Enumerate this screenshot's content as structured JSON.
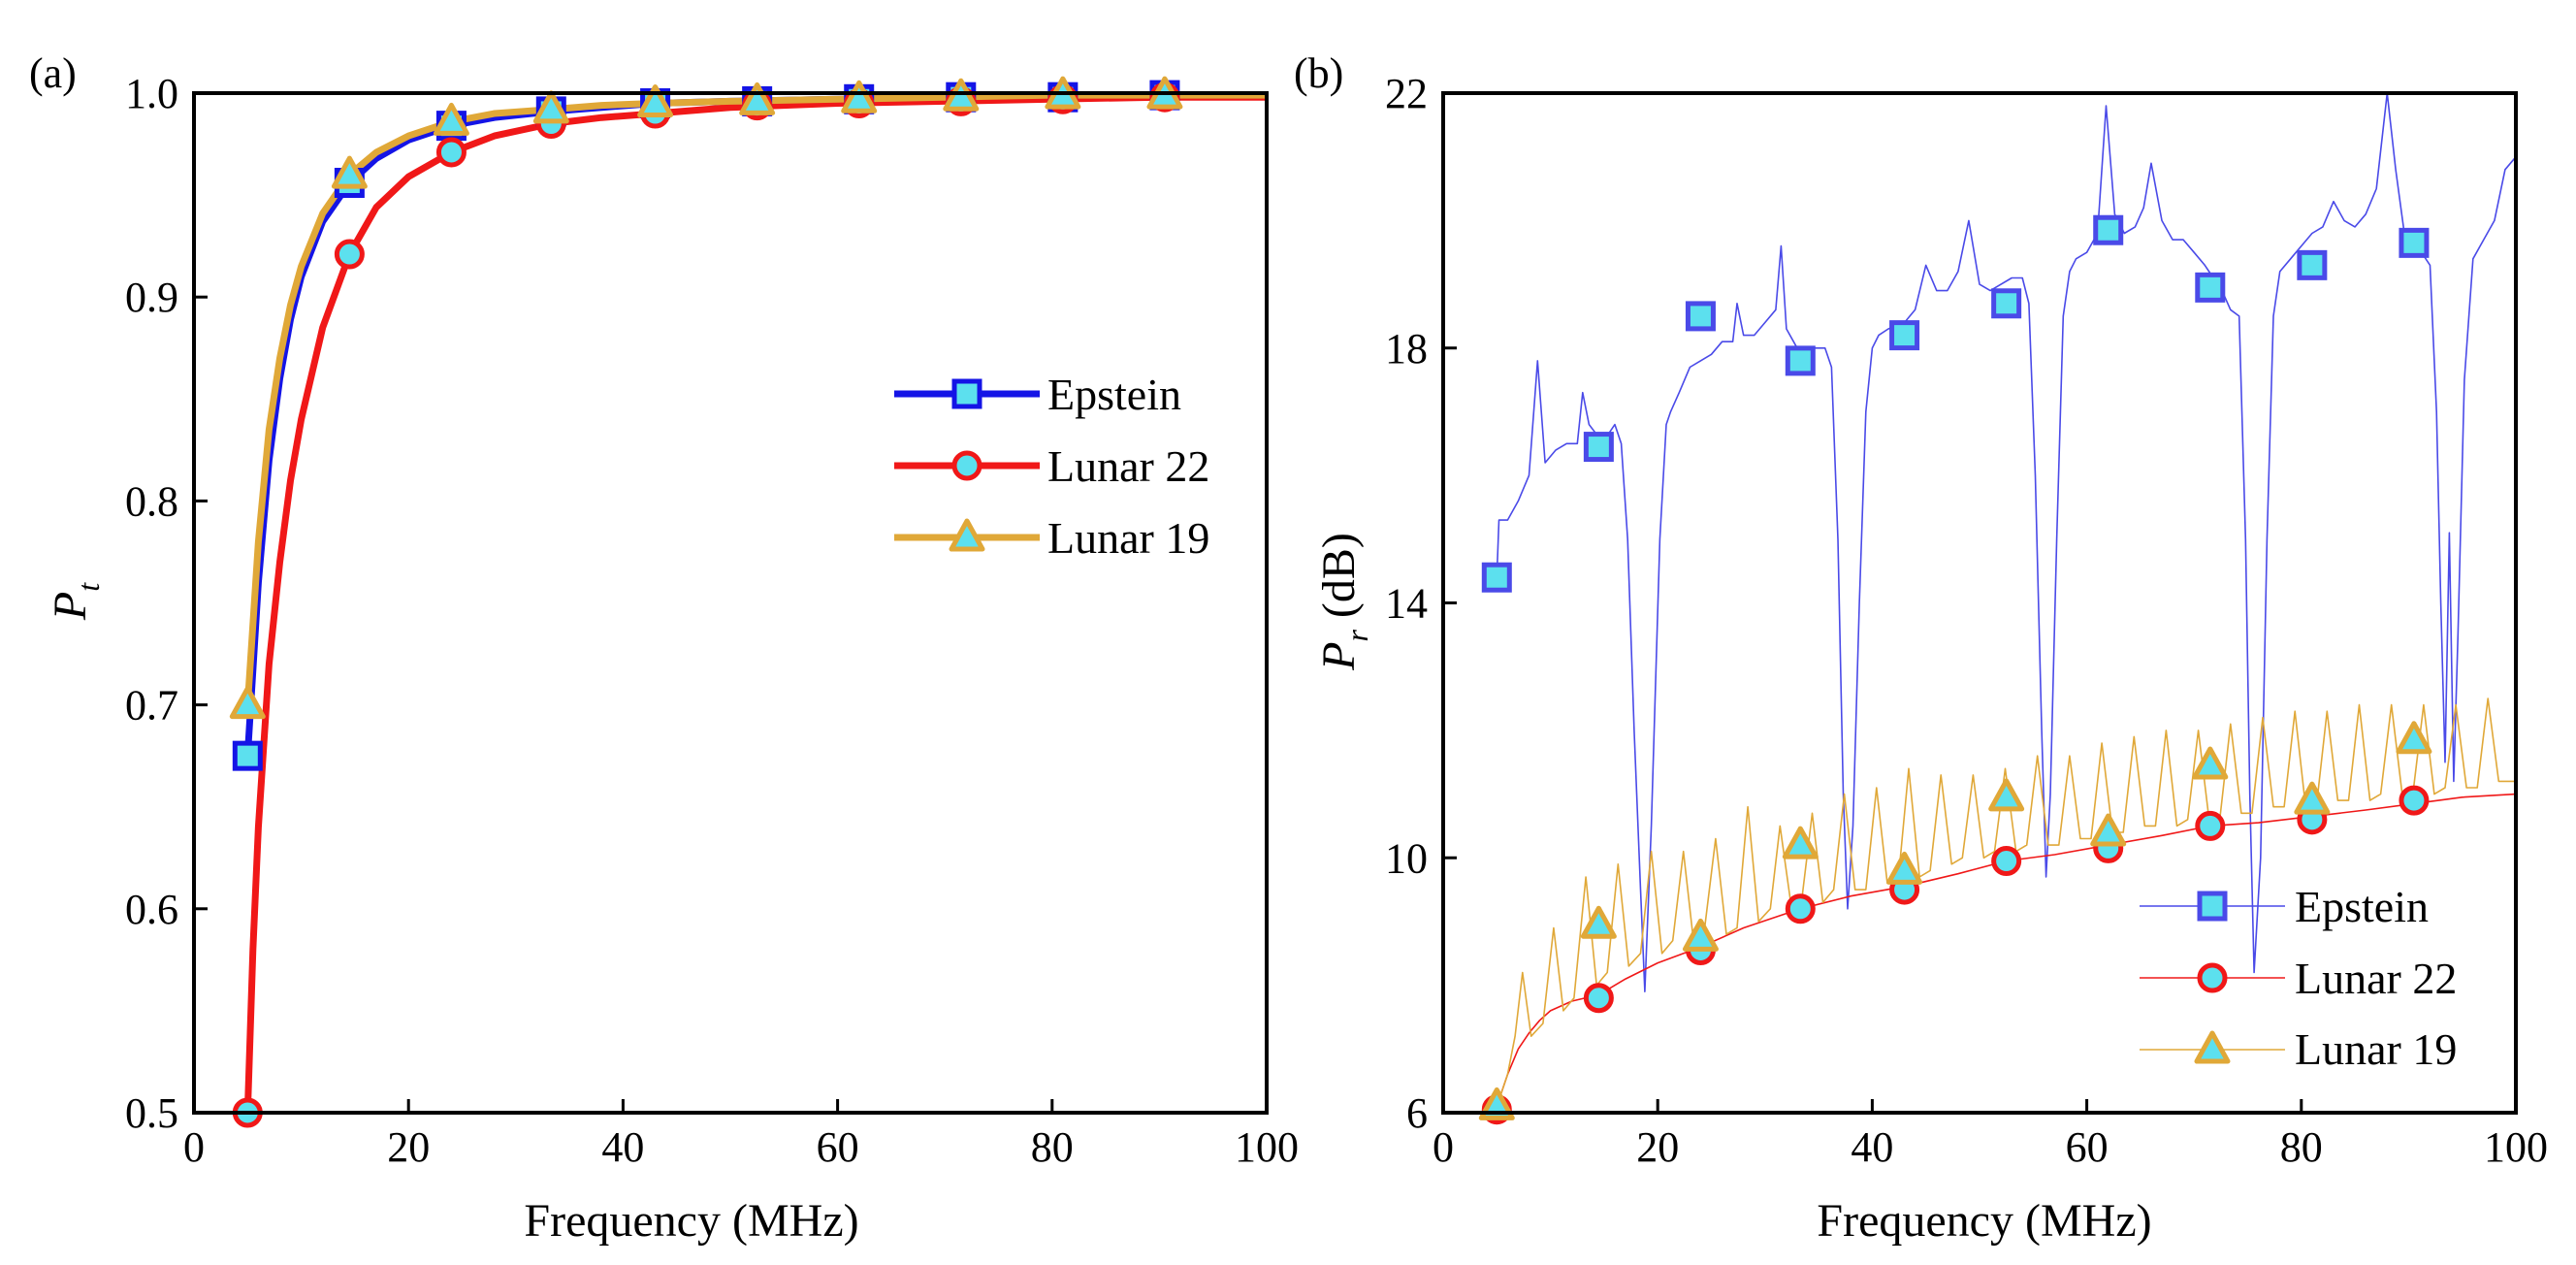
{
  "colors": {
    "epstein": "#1414e6",
    "epstein_thin": "#4a4ae8",
    "lunar22": "#f01818",
    "lunar19": "#e0a838",
    "marker_fill": "#5ce0ee",
    "axis": "#000000"
  },
  "chart_data": [
    {
      "type": "line",
      "panel_label": "(a)",
      "xlabel": "Frequency (MHz)",
      "ylabel_main": "P",
      "ylabel_sub": "t",
      "ylabel_tail": "",
      "xlim": [
        0,
        100
      ],
      "ylim": [
        0.5,
        1.0
      ],
      "xticks": [
        0,
        20,
        40,
        60,
        80,
        100
      ],
      "xtick_labels": [
        "0",
        "20",
        "40",
        "60",
        "80",
        "100"
      ],
      "yticks": [
        0.5,
        0.6,
        0.7,
        0.8,
        0.9,
        1.0
      ],
      "ytick_labels": [
        "0.5",
        "0.6",
        "0.7",
        "0.8",
        "0.9",
        "1.0"
      ],
      "legend_position": "center-right",
      "series": [
        {
          "name": "Epstein",
          "color_key": "epstein",
          "marker": "square",
          "line_style": "thick",
          "x": [
            5,
            6,
            7,
            8,
            9,
            10,
            12,
            14.5,
            17,
            20,
            24,
            28,
            33.3,
            38,
            43,
            50,
            60,
            70,
            80,
            90,
            100
          ],
          "y": [
            0.675,
            0.76,
            0.82,
            0.86,
            0.889,
            0.91,
            0.937,
            0.956,
            0.968,
            0.977,
            0.984,
            0.988,
            0.991,
            0.993,
            0.995,
            0.996,
            0.997,
            0.998,
            0.998,
            0.999,
            0.999
          ],
          "marker_x": [
            5,
            14.5,
            24,
            33.3,
            43,
            52.5,
            62,
            71.5,
            81,
            90.5
          ],
          "marker_y": [
            0.675,
            0.956,
            0.984,
            0.991,
            0.995,
            0.996,
            0.997,
            0.998,
            0.998,
            0.999
          ]
        },
        {
          "name": "Lunar 22",
          "color_key": "lunar22",
          "marker": "circle",
          "line_style": "thick",
          "x": [
            5,
            5.5,
            6,
            7,
            8,
            9,
            10,
            12,
            14.5,
            17,
            20,
            24,
            28,
            33.3,
            38,
            43,
            50,
            60,
            70,
            80,
            90,
            100
          ],
          "y": [
            0.5,
            0.58,
            0.64,
            0.72,
            0.77,
            0.81,
            0.84,
            0.885,
            0.921,
            0.944,
            0.959,
            0.971,
            0.979,
            0.985,
            0.988,
            0.99,
            0.993,
            0.995,
            0.996,
            0.997,
            0.998,
            0.998
          ],
          "marker_x": [
            5,
            14.5,
            24,
            33.3,
            43,
            52.5,
            62,
            71.5,
            81,
            90.5
          ],
          "marker_y": [
            0.5,
            0.921,
            0.971,
            0.985,
            0.99,
            0.994,
            0.995,
            0.996,
            0.997,
            0.998
          ]
        },
        {
          "name": "Lunar 19",
          "color_key": "lunar19",
          "marker": "triangle",
          "line_style": "thick",
          "x": [
            5,
            6,
            7,
            8,
            9,
            10,
            12,
            14.5,
            17,
            20,
            24,
            28,
            33.3,
            38,
            43,
            50,
            60,
            70,
            80,
            90,
            100
          ],
          "y": [
            0.7,
            0.78,
            0.835,
            0.87,
            0.896,
            0.915,
            0.941,
            0.96,
            0.971,
            0.979,
            0.986,
            0.99,
            0.992,
            0.994,
            0.995,
            0.996,
            0.997,
            0.998,
            0.999,
            0.999,
            0.999
          ],
          "marker_x": [
            5,
            14.5,
            24,
            33.3,
            43,
            52.5,
            62,
            71.5,
            81,
            90.5
          ],
          "marker_y": [
            0.7,
            0.96,
            0.986,
            0.992,
            0.995,
            0.996,
            0.997,
            0.998,
            0.999,
            0.999
          ]
        }
      ]
    },
    {
      "type": "line",
      "panel_label": "(b)",
      "xlabel": "Frequency (MHz)",
      "ylabel_main": "P",
      "ylabel_sub": "r",
      "ylabel_tail": " (dB)",
      "xlim": [
        0,
        100
      ],
      "ylim": [
        6,
        22
      ],
      "xticks": [
        0,
        20,
        40,
        60,
        80,
        100
      ],
      "xtick_labels": [
        "0",
        "20",
        "40",
        "60",
        "80",
        "100"
      ],
      "yticks": [
        6,
        10,
        14,
        18,
        22
      ],
      "ytick_labels": [
        "6",
        "10",
        "14",
        "18",
        "22"
      ],
      "legend_position": "bottom-right",
      "series": [
        {
          "name": "Epstein",
          "color_key": "epstein_thin",
          "marker": "square",
          "line_style": "thin",
          "x": [
            5,
            5.2,
            6,
            7,
            8,
            8.8,
            9.5,
            10.5,
            11.5,
            12.5,
            13,
            13.6,
            14.5,
            15.2,
            16,
            16.6,
            17.2,
            17.8,
            18.4,
            18.8,
            19.4,
            20.2,
            20.8,
            21.2,
            22,
            23,
            24,
            25,
            26,
            27,
            27.4,
            28,
            29,
            30,
            31,
            31.5,
            32,
            33,
            34,
            35,
            35.6,
            36.2,
            36.8,
            37.3,
            37.7,
            38.2,
            38.8,
            39.4,
            40,
            40.6,
            41.5,
            43,
            44,
            45,
            46,
            47,
            48,
            49,
            50,
            51,
            52,
            53,
            54,
            54.6,
            55.2,
            55.8,
            56.2,
            56.6,
            57.2,
            57.8,
            58.4,
            59,
            60,
            61,
            61.8,
            62.6,
            63.5,
            64.5,
            65.3,
            66,
            67,
            68,
            69,
            70,
            71,
            71.8,
            72.6,
            73.4,
            74.2,
            74.8,
            75.2,
            75.6,
            76.2,
            76.8,
            77.4,
            78,
            79,
            80,
            81,
            82,
            83,
            84,
            85,
            86,
            87,
            88,
            88.8,
            89.6,
            90.4,
            91.2,
            92,
            92.6,
            93,
            93.4,
            93.8,
            94.2,
            94.6,
            95.2,
            96,
            97,
            98,
            99,
            100
          ],
          "y": [
            14.4,
            15.3,
            15.3,
            15.6,
            16.0,
            17.8,
            16.2,
            16.4,
            16.5,
            16.5,
            17.3,
            16.8,
            16.6,
            16.6,
            16.8,
            16.5,
            15.0,
            12.0,
            9.5,
            7.9,
            10.5,
            15.0,
            16.8,
            17.0,
            17.3,
            17.7,
            17.8,
            17.9,
            18.1,
            18.1,
            18.7,
            18.2,
            18.2,
            18.4,
            18.6,
            19.6,
            18.3,
            18.0,
            18.0,
            18.0,
            18.0,
            17.7,
            15.0,
            11.0,
            9.2,
            10.5,
            14.0,
            17.0,
            18.0,
            18.2,
            18.3,
            18.4,
            18.6,
            19.3,
            18.9,
            18.9,
            19.2,
            20.0,
            19.0,
            18.9,
            19.0,
            19.1,
            19.1,
            18.7,
            16.0,
            12.0,
            9.7,
            11.0,
            15.0,
            18.5,
            19.2,
            19.4,
            19.5,
            19.8,
            21.8,
            20.1,
            19.8,
            19.9,
            20.2,
            20.9,
            20.0,
            19.7,
            19.7,
            19.5,
            19.3,
            19.1,
            18.9,
            18.6,
            18.5,
            15.0,
            11.0,
            8.2,
            10.0,
            15.0,
            18.5,
            19.2,
            19.4,
            19.6,
            19.8,
            19.9,
            20.3,
            20.0,
            19.9,
            20.1,
            20.5,
            22.0,
            20.8,
            19.8,
            19.6,
            19.5,
            19.3,
            17.0,
            14.0,
            11.5,
            15.1,
            11.2,
            13.5,
            17.5,
            19.4,
            19.7,
            20.0,
            20.8,
            21.0
          ]
        },
        {
          "name": "Lunar 22",
          "color_key": "lunar22",
          "marker": "circle",
          "line_style": "thin",
          "x": [
            5,
            6,
            7,
            8,
            9,
            10,
            12,
            14.5,
            17,
            20,
            24,
            28,
            33.3,
            38,
            43,
            48,
            52.5,
            57,
            62,
            67,
            71.5,
            76,
            81,
            86,
            90.5,
            95,
            100
          ],
          "y": [
            6.1,
            6.6,
            7.0,
            7.25,
            7.45,
            7.6,
            7.75,
            7.85,
            8.1,
            8.35,
            8.6,
            8.9,
            9.2,
            9.4,
            9.55,
            9.75,
            9.95,
            10.05,
            10.2,
            10.35,
            10.5,
            10.55,
            10.65,
            10.75,
            10.85,
            10.95,
            11.0
          ]
        },
        {
          "name": "Lunar 19",
          "color_key": "lunar19",
          "marker": "triangle",
          "line_style": "thin",
          "x": [
            5,
            6,
            6.7,
            7.4,
            8.2,
            9.3,
            10.3,
            11.2,
            12.2,
            13.3,
            14.3,
            15.3,
            16.3,
            17.3,
            18.4,
            19.4,
            20.4,
            21.4,
            22.4,
            23.4,
            24.3,
            25.4,
            26.4,
            27.4,
            28.4,
            29.4,
            30.5,
            31.4,
            32.4,
            33.4,
            34.4,
            35.4,
            36.4,
            37.4,
            38.4,
            39.4,
            40.4,
            41.4,
            42.4,
            43.4,
            44.4,
            45.4,
            46.4,
            47.4,
            48.4,
            49.4,
            50.4,
            51.4,
            52.4,
            53.4,
            54.4,
            55.4,
            56.4,
            57.4,
            58.4,
            59.4,
            60.4,
            61.4,
            62.4,
            63.4,
            64.4,
            65.4,
            66.4,
            67.4,
            68.4,
            69.4,
            70.4,
            71.4,
            72.4,
            73.4,
            74.4,
            75.4,
            76.4,
            77.4,
            78.4,
            79.4,
            80.4,
            81.4,
            82.4,
            83.4,
            84.4,
            85.4,
            86.4,
            87.4,
            88.4,
            89.4,
            90.4,
            91.4,
            92.4,
            93.4,
            94.4,
            95.4,
            96.4,
            97.4,
            98.4,
            99.4,
            100
          ],
          "y": [
            6.1,
            6.6,
            7.2,
            8.2,
            7.2,
            7.4,
            8.9,
            7.6,
            7.8,
            9.7,
            8.0,
            8.2,
            9.9,
            8.3,
            8.5,
            10.1,
            8.5,
            8.7,
            10.1,
            8.6,
            8.8,
            10.3,
            8.8,
            8.9,
            10.8,
            9.0,
            9.2,
            10.5,
            9.3,
            9.3,
            10.7,
            9.3,
            9.5,
            11.0,
            9.5,
            9.5,
            11.1,
            9.6,
            9.6,
            11.4,
            9.7,
            9.8,
            11.3,
            9.9,
            10.0,
            11.3,
            10.0,
            10.1,
            11.4,
            10.1,
            10.2,
            11.6,
            10.2,
            10.2,
            11.6,
            10.3,
            10.3,
            11.8,
            10.4,
            10.4,
            11.9,
            10.5,
            10.5,
            12.0,
            10.5,
            10.6,
            12.0,
            10.6,
            10.6,
            12.1,
            10.7,
            10.7,
            12.2,
            10.8,
            10.8,
            12.3,
            10.8,
            10.8,
            12.3,
            10.9,
            10.9,
            12.4,
            10.9,
            11.0,
            12.4,
            11.0,
            11.0,
            12.4,
            11.0,
            11.1,
            12.4,
            11.1,
            11.1,
            12.5,
            11.2,
            11.2,
            11.2
          ],
          "marker_x": [
            5,
            14.5,
            24,
            33.3,
            43,
            52.5,
            62,
            71.5,
            81,
            90.5
          ],
          "marker_y": [
            6.1,
            8.95,
            8.75,
            10.2,
            9.8,
            10.95,
            10.4,
            11.45,
            10.9,
            11.85
          ]
        }
      ],
      "marker_sets": {
        "Epstein": {
          "x": [
            5,
            14.5,
            24,
            33.3,
            43,
            52.5,
            62,
            71.5,
            81,
            90.5
          ],
          "y": [
            14.4,
            16.45,
            18.5,
            17.8,
            18.2,
            18.7,
            19.85,
            18.95,
            19.3,
            19.65
          ]
        },
        "Lunar 22": {
          "x": [
            5,
            14.5,
            24,
            33.3,
            43,
            52.5,
            62,
            71.5,
            81,
            90.5
          ],
          "y": [
            6.05,
            7.8,
            8.55,
            9.2,
            9.5,
            9.95,
            10.15,
            10.5,
            10.6,
            10.9
          ]
        }
      }
    }
  ]
}
